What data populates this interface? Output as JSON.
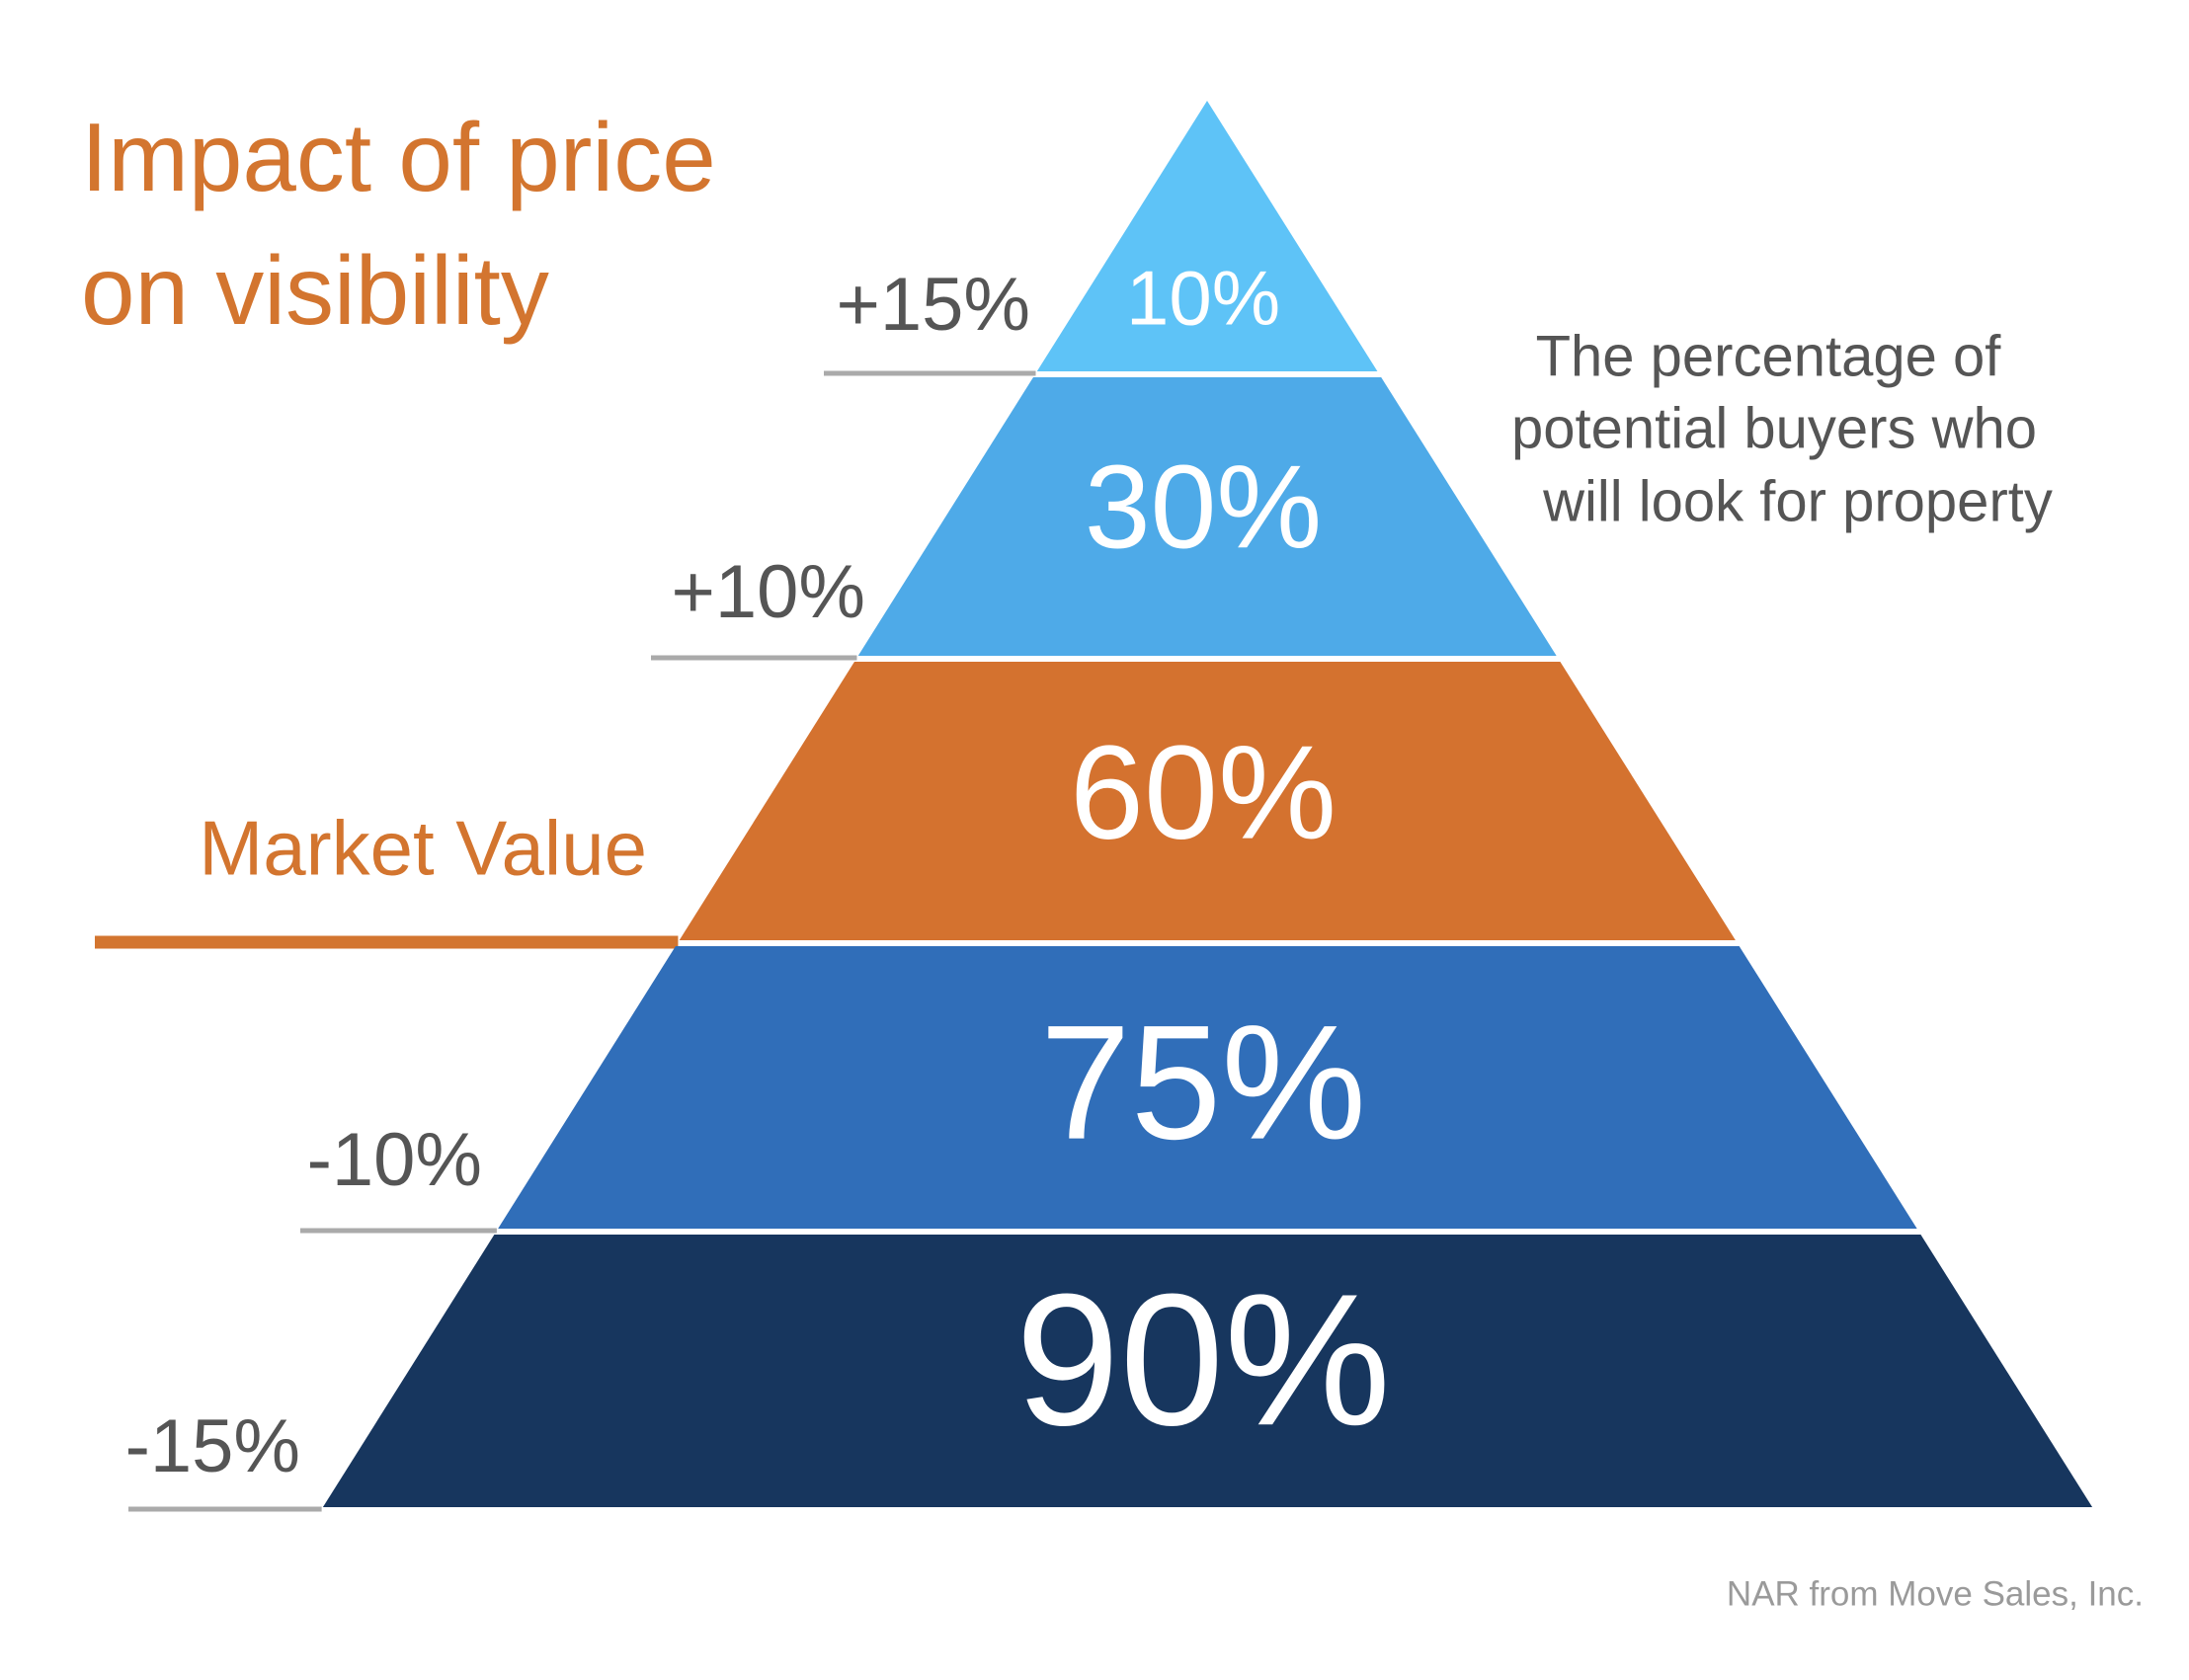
{
  "title": {
    "lines": [
      "Impact of price",
      "on visibility"
    ]
  },
  "levels": [
    {
      "share": "10%",
      "price": "+15%"
    },
    {
      "share": "30%",
      "price": "+10%"
    },
    {
      "share": "60%",
      "price": "Market Value"
    },
    {
      "share": "75%",
      "price": "-10%"
    },
    {
      "share": "90%",
      "price": "-15%"
    }
  ],
  "note": {
    "lines": [
      "The percentage of",
      "potential buyers who",
      "will look for property"
    ]
  },
  "source": "NAR from Move Sales, Inc."
}
